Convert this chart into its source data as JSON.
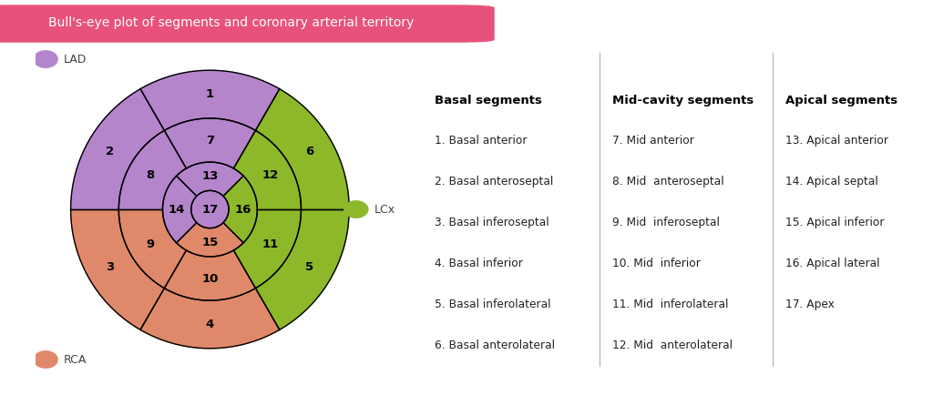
{
  "title": "Bull's-eye plot of segments and coronary arterial territory",
  "title_bg": "#e8527a",
  "title_color": "white",
  "colors": {
    "LAD": "#b585cc",
    "LCx": "#8db82a",
    "RCA": "#e0896a",
    "center": "#b585cc"
  },
  "background": "white",
  "basal_segments": [
    {
      "num": 1,
      "artery": "LAD",
      "theta_mid": 90
    },
    {
      "num": 2,
      "artery": "LAD",
      "theta_mid": 150
    },
    {
      "num": 3,
      "artery": "RCA",
      "theta_mid": 210
    },
    {
      "num": 4,
      "artery": "RCA",
      "theta_mid": 270
    },
    {
      "num": 5,
      "artery": "LCx",
      "theta_mid": 330
    },
    {
      "num": 6,
      "artery": "LCx",
      "theta_mid": 30
    }
  ],
  "mid_segments": [
    {
      "num": 7,
      "artery": "LAD",
      "theta_mid": 90
    },
    {
      "num": 8,
      "artery": "LAD",
      "theta_mid": 150
    },
    {
      "num": 9,
      "artery": "RCA",
      "theta_mid": 210
    },
    {
      "num": 10,
      "artery": "RCA",
      "theta_mid": 270
    },
    {
      "num": 11,
      "artery": "LCx",
      "theta_mid": 330
    },
    {
      "num": 12,
      "artery": "LCx",
      "theta_mid": 30
    }
  ],
  "apical_segments": [
    {
      "num": 13,
      "artery": "LAD",
      "theta_mid": 90
    },
    {
      "num": 14,
      "artery": "LAD",
      "theta_mid": 180
    },
    {
      "num": 15,
      "artery": "RCA",
      "theta_mid": 270
    },
    {
      "num": 16,
      "artery": "LCx",
      "theta_mid": 0
    }
  ],
  "basal_boundaries_deg": [
    60,
    120,
    180,
    240,
    300,
    360
  ],
  "mid_boundaries_deg": [
    60,
    120,
    180,
    240,
    300,
    360
  ],
  "apical_boundaries_deg": [
    135,
    225,
    315,
    45
  ],
  "r_outer": 1.0,
  "r_basal_inner": 0.655,
  "r_mid_inner": 0.34,
  "r_apical_inner": 0.135,
  "legend_items": [
    {
      "label": "LAD",
      "color": "#b585cc"
    },
    {
      "label": "LCx",
      "color": "#8db82a"
    },
    {
      "label": "RCA",
      "color": "#e0896a"
    }
  ],
  "basal_col_header": "Basal segments",
  "mid_col_header": "Mid-cavity segments",
  "apical_col_header": "Apical segments",
  "basal_list": [
    "1. Basal anterior",
    "2. Basal anteroseptal",
    "3. Basal inferoseptal",
    "4. Basal inferior",
    "5. Basal inferolateral",
    "6. Basal anterolateral"
  ],
  "mid_list": [
    "7. Mid anterior",
    "8. Mid  anteroseptal",
    "9. Mid  inferoseptal",
    "10. Mid  inferior",
    "11. Mid  inferolateral",
    "12. Mid  anterolateral"
  ],
  "apical_list": [
    "13. Apical anterior",
    "14. Apical septal",
    "15. Apical inferior",
    "16. Apical lateral",
    "17. Apex"
  ]
}
